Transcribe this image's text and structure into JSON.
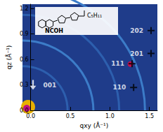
{
  "chart_data": {
    "type": "scatter",
    "xlabel": "qxy (Å⁻¹)",
    "ylabel": "qz (Å⁻¹)",
    "xlim": [
      0,
      1.6
    ],
    "ylim": [
      0,
      1.25
    ],
    "xticks": [
      {
        "value": 0,
        "label": "0.0"
      },
      {
        "value": 0.5,
        "label": "0.5"
      },
      {
        "value": 1,
        "label": "1.0"
      },
      {
        "value": 1.5,
        "label": "1.5"
      }
    ],
    "yticks": [
      {
        "value": 0,
        "label": "0.0"
      },
      {
        "value": 0.3,
        "label": "0.3"
      },
      {
        "value": 0.6,
        "label": "0.6"
      },
      {
        "value": 0.9,
        "label": "0.9"
      },
      {
        "value": 1.2,
        "label": "1.2"
      }
    ],
    "annotations": [
      "NCOH",
      "C₅H₁₁"
    ],
    "series": [
      {
        "name": "001",
        "marker": "arrow",
        "color": "#ffffff",
        "x": [
          0.03
        ],
        "values": [
          0.3
        ]
      },
      {
        "name": "110",
        "marker": "cross",
        "color": "#000000",
        "x": [
          1.3
        ],
        "values": [
          0.27
        ]
      },
      {
        "name": "111",
        "marker": "cross",
        "color": "#000000",
        "x": [
          1.28
        ],
        "values": [
          0.55
        ]
      },
      {
        "name": "201",
        "marker": "cross",
        "color": "#000000",
        "x": [
          1.52
        ],
        "values": [
          0.67
        ]
      },
      {
        "name": "202",
        "marker": "cross",
        "color": "#000000",
        "x": [
          1.52
        ],
        "values": [
          0.94
        ]
      }
    ],
    "data_labels": true,
    "grid": false,
    "tick_labels": true
  }
}
